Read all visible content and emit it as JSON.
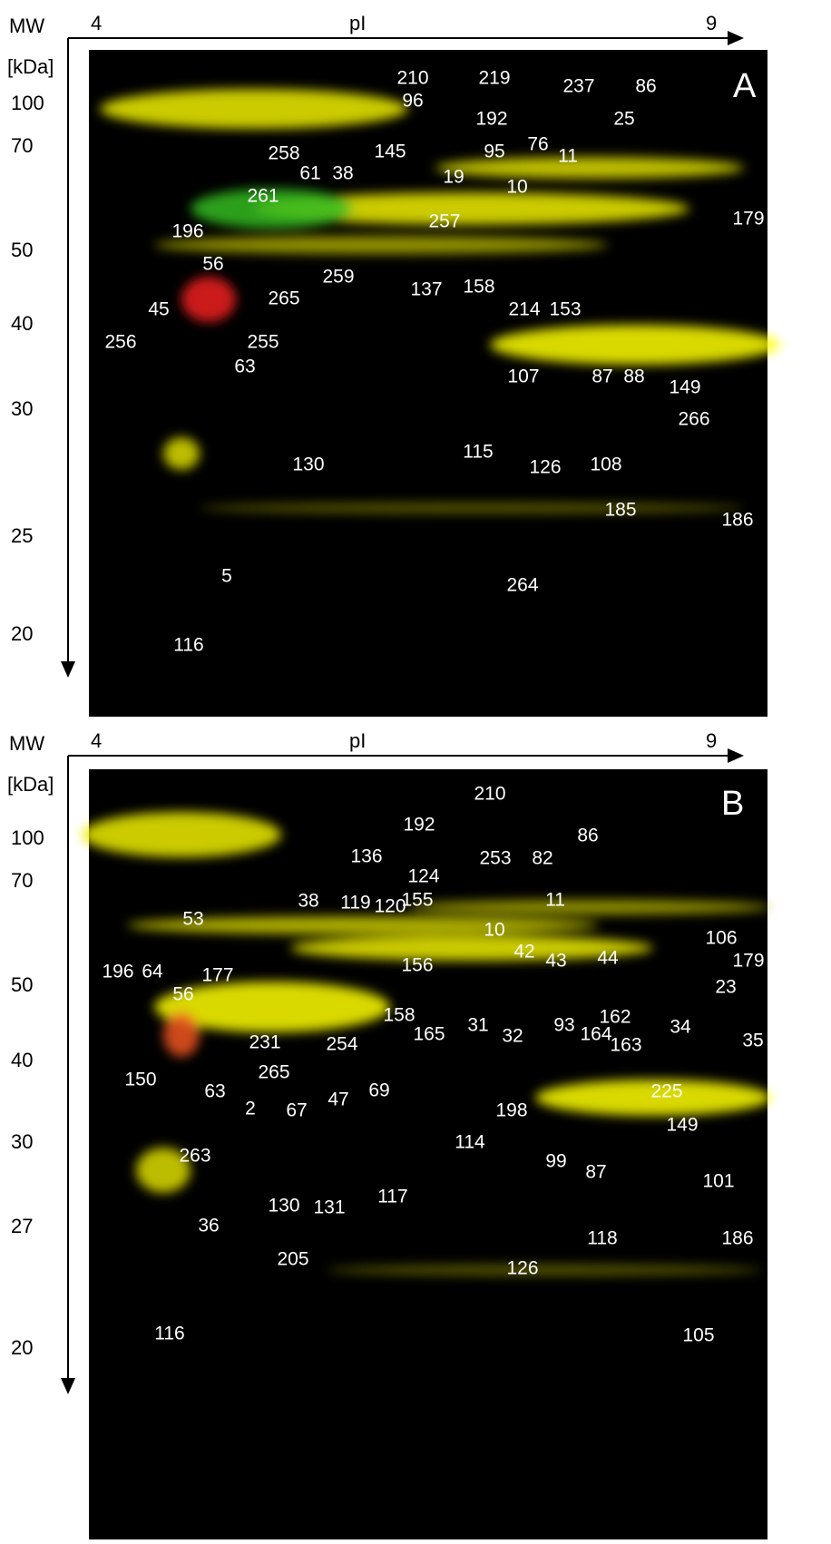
{
  "panels": [
    {
      "letter": "A",
      "mw_label": "MW",
      "unit_label": "[kDa]",
      "pi_start": "4",
      "pi_label": "pI",
      "pi_end": "9",
      "mw_ticks": [
        "100",
        "70",
        "50",
        "40",
        "30",
        "25",
        "20"
      ],
      "spots": [
        "210",
        "219",
        "237",
        "86",
        "96",
        "192",
        "25",
        "76",
        "145",
        "95",
        "11",
        "10",
        "258",
        "61",
        "38",
        "19",
        "261",
        "257",
        "179",
        "196",
        "56",
        "259",
        "137",
        "158",
        "214",
        "153",
        "265",
        "45",
        "255",
        "256",
        "63",
        "107",
        "87",
        "88",
        "149",
        "266",
        "130",
        "115",
        "126",
        "108",
        "185",
        "186",
        "5",
        "264",
        "116"
      ]
    },
    {
      "letter": "B",
      "mw_label": "MW",
      "unit_label": "[kDa]",
      "pi_start": "4",
      "pi_label": "pI",
      "pi_end": "9",
      "mw_ticks": [
        "100",
        "70",
        "50",
        "40",
        "30",
        "27",
        "20"
      ],
      "spots": [
        "210",
        "192",
        "86",
        "136",
        "253",
        "82",
        "124",
        "11",
        "155",
        "38",
        "119",
        "120",
        "10",
        "53",
        "106",
        "42",
        "43",
        "44",
        "179",
        "156",
        "196",
        "64",
        "177",
        "56",
        "23",
        "162",
        "158",
        "34",
        "35",
        "165",
        "31",
        "93",
        "164",
        "231",
        "32",
        "163",
        "254",
        "265",
        "47",
        "69",
        "150",
        "63",
        "225",
        "198",
        "2",
        "67",
        "149",
        "114",
        "263",
        "101",
        "87",
        "99",
        "130",
        "131",
        "117",
        "36",
        "118",
        "186",
        "205",
        "126",
        "116",
        "105"
      ]
    }
  ]
}
